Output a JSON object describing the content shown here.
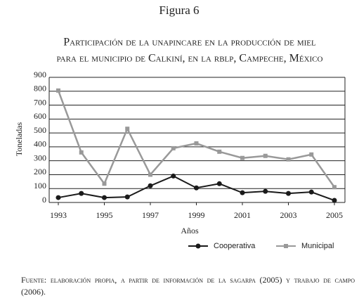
{
  "chart_data": {
    "type": "line",
    "figure_label": "Figura 6",
    "title": [
      "Participación de la unapincare en la producción de miel",
      "para el municipio de Calkiní, en la rblp, Campeche, México"
    ],
    "x_label": "Años",
    "y_label": "Toneladas",
    "x": [
      1993,
      1994,
      1995,
      1996,
      1997,
      1998,
      1999,
      2000,
      2001,
      2002,
      2003,
      2004,
      2005
    ],
    "xlim": [
      1993,
      2005
    ],
    "xticks": [
      1993,
      1995,
      1997,
      1999,
      2001,
      2003,
      2005
    ],
    "ylim": [
      0,
      900
    ],
    "yticks": [
      0,
      100,
      200,
      300,
      400,
      500,
      600,
      700,
      800,
      900
    ],
    "grid": true,
    "legend": "bottom",
    "series": [
      {
        "name": "Cooperativa",
        "color": "#1a1a1a",
        "marker": "circle",
        "values": [
          35,
          65,
          35,
          40,
          120,
          190,
          105,
          135,
          70,
          80,
          65,
          75,
          15
        ]
      },
      {
        "name": "Municipal",
        "color": "#999999",
        "marker": "square",
        "values": [
          805,
          360,
          135,
          530,
          200,
          390,
          425,
          365,
          320,
          335,
          310,
          345,
          110
        ]
      }
    ],
    "source": "Fuente: elaboración propia, a partir de información de la sagarpa (2005) y trabajo de campo (2006)."
  }
}
